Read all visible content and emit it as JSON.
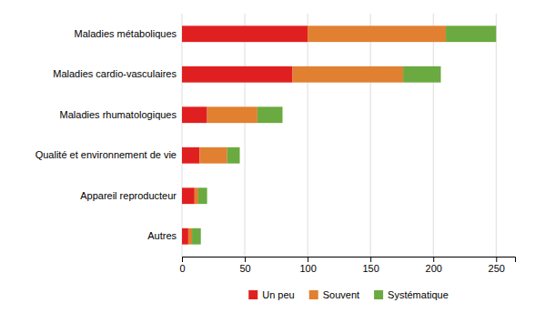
{
  "chart_data": {
    "type": "bar",
    "orientation": "horizontal",
    "stacked": true,
    "categories": [
      "Autres",
      "Appareil reproducteur",
      "Qualité et environnement de vie",
      "Maladies rhumatologiques",
      "Maladies cardio-vasculaires",
      "Maladies métaboliques"
    ],
    "series": [
      {
        "name": "Un peu",
        "color": "#e02020",
        "values": [
          5,
          10,
          14,
          20,
          88,
          100
        ]
      },
      {
        "name": "Souvent",
        "color": "#e08030",
        "values": [
          3,
          3,
          22,
          40,
          88,
          110
        ]
      },
      {
        "name": "Systématique",
        "color": "#6aaa40",
        "values": [
          7,
          7,
          10,
          20,
          30,
          40
        ]
      }
    ],
    "xlim": [
      0,
      265
    ],
    "xticks": [
      0,
      50,
      100,
      150,
      200,
      250
    ],
    "grid": true,
    "legend": "bottom"
  }
}
